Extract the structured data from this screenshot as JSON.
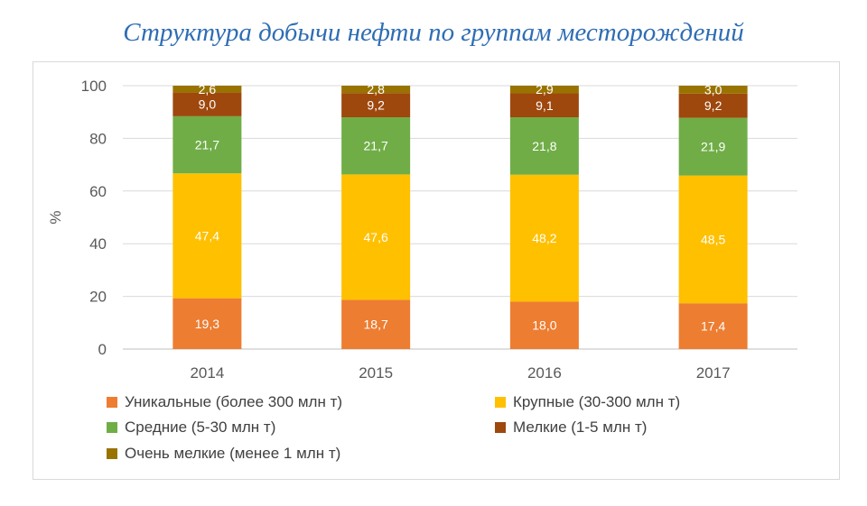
{
  "title": "Структура добычи нефти по группам месторождений",
  "chart_data": {
    "type": "bar",
    "stacked": true,
    "categories": [
      "2014",
      "2015",
      "2016",
      "2017"
    ],
    "ylabel": "%",
    "ylim": [
      0,
      100
    ],
    "yticks": [
      "0",
      "20",
      "40",
      "60",
      "80",
      "100"
    ],
    "grid": true,
    "legend_position": "bottom",
    "series": [
      {
        "name": "Уникальные (более 300 млн т)",
        "color": "#ed7d31",
        "values": [
          19.3,
          18.7,
          18.0,
          17.4
        ],
        "labels": [
          "19,3",
          "18,7",
          "18,0",
          "17,4"
        ]
      },
      {
        "name": "Крупные (30-300 млн т)",
        "color": "#ffc000",
        "values": [
          47.4,
          47.6,
          48.2,
          48.5
        ],
        "labels": [
          "47,4",
          "47,6",
          "48,2",
          "48,5"
        ]
      },
      {
        "name": "Средние (5-30 млн т)",
        "color": "#70ad47",
        "values": [
          21.7,
          21.7,
          21.8,
          21.9
        ],
        "labels": [
          "21,7",
          "21,7",
          "21,8",
          "21,9"
        ]
      },
      {
        "name": "Мелкие (1-5 млн т)",
        "color": "#9e480e",
        "values": [
          9.0,
          9.2,
          9.1,
          9.2
        ],
        "labels": [
          "9,0",
          "9,2",
          "9,1",
          "9,2"
        ]
      },
      {
        "name": "Очень мелкие (менее 1 млн т)",
        "color": "#997300",
        "values": [
          2.6,
          2.8,
          2.9,
          3.0
        ],
        "labels": [
          "2,6",
          "2,8",
          "2,9",
          "3,0"
        ]
      }
    ]
  }
}
